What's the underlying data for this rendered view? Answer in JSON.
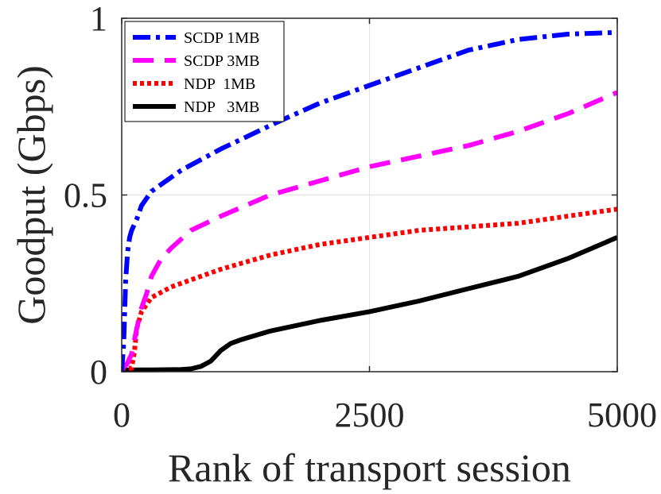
{
  "chart_data": {
    "type": "line",
    "title": "",
    "xlabel": "Rank of transport session",
    "ylabel": "Goodput (Gbps)",
    "xlim": [
      0,
      5000
    ],
    "ylim": [
      0,
      1
    ],
    "xticks": [
      0,
      2500,
      5000
    ],
    "xtick_labels": [
      "0",
      "2500",
      "5000"
    ],
    "yticks": [
      0,
      0.5,
      1
    ],
    "ytick_labels": [
      "0",
      "0.5",
      "1"
    ],
    "grid": true,
    "legend_position": "top-left",
    "series": [
      {
        "name": "SCDP 1MB",
        "color": "#0000ff",
        "style": "dash-dot",
        "x": [
          0,
          20,
          40,
          60,
          80,
          100,
          150,
          200,
          300,
          400,
          600,
          800,
          1000,
          1300,
          1600,
          2000,
          2500,
          3000,
          3500,
          4000,
          4500,
          5000
        ],
        "y": [
          0.0,
          0.08,
          0.26,
          0.34,
          0.38,
          0.4,
          0.43,
          0.47,
          0.51,
          0.53,
          0.57,
          0.6,
          0.63,
          0.67,
          0.71,
          0.76,
          0.81,
          0.86,
          0.91,
          0.94,
          0.955,
          0.96
        ]
      },
      {
        "name": "SCDP 3MB",
        "color": "#ff00ff",
        "style": "dashed",
        "x": [
          0,
          50,
          100,
          150,
          200,
          250,
          300,
          400,
          500,
          700,
          1000,
          1500,
          2000,
          2500,
          3000,
          3500,
          4000,
          4500,
          5000
        ],
        "y": [
          0.01,
          0.02,
          0.05,
          0.12,
          0.18,
          0.22,
          0.27,
          0.32,
          0.35,
          0.4,
          0.44,
          0.5,
          0.54,
          0.58,
          0.61,
          0.64,
          0.68,
          0.73,
          0.79
        ]
      },
      {
        "name": "NDP  1MB",
        "color": "#ff0000",
        "style": "dotted",
        "x": [
          0,
          100,
          130,
          150,
          200,
          300,
          500,
          700,
          1000,
          1500,
          2000,
          2500,
          3000,
          3500,
          4000,
          4500,
          5000
        ],
        "y": [
          0.01,
          0.01,
          0.06,
          0.12,
          0.17,
          0.21,
          0.24,
          0.26,
          0.29,
          0.33,
          0.36,
          0.38,
          0.4,
          0.41,
          0.42,
          0.44,
          0.46
        ]
      },
      {
        "name": "NDP   3MB",
        "color": "#000000",
        "style": "solid",
        "x": [
          0,
          300,
          600,
          700,
          800,
          900,
          1000,
          1100,
          1200,
          1500,
          2000,
          2500,
          3000,
          3500,
          4000,
          4500,
          5000
        ],
        "y": [
          0.005,
          0.005,
          0.006,
          0.008,
          0.015,
          0.03,
          0.06,
          0.08,
          0.09,
          0.115,
          0.145,
          0.17,
          0.2,
          0.235,
          0.27,
          0.32,
          0.38
        ]
      }
    ]
  }
}
